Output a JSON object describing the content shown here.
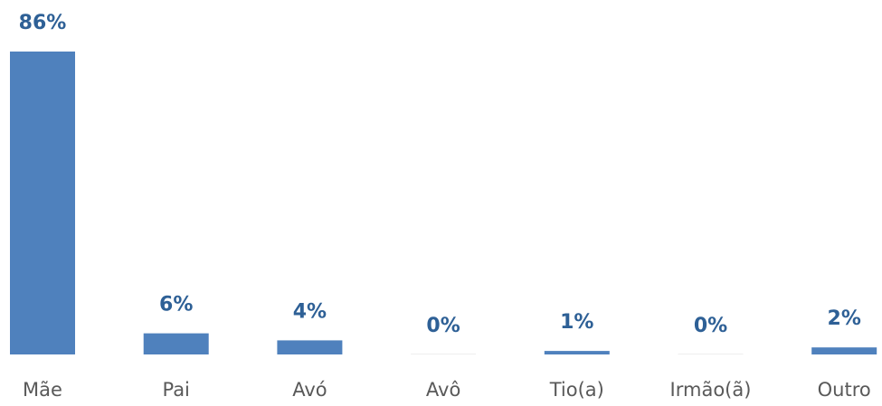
{
  "chart_data": {
    "type": "bar",
    "categories": [
      "Mãe",
      "Pai",
      "Avó",
      "Avô",
      "Tio(a)",
      "Irmão(ã)",
      "Outro"
    ],
    "values": [
      86,
      6,
      4,
      0,
      1,
      0,
      2
    ],
    "value_labels": [
      "86%",
      "6%",
      "4%",
      "0%",
      "1%",
      "0%",
      "2%"
    ],
    "color": "#4f81bd"
  }
}
